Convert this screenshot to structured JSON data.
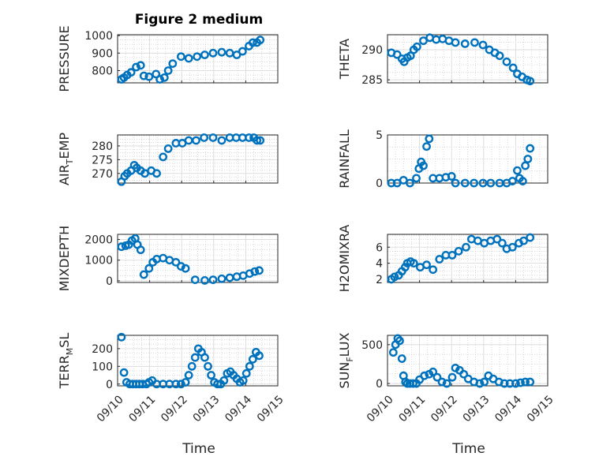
{
  "figure": {
    "title": "Figure 2 medium",
    "marker_color": "#0072bd",
    "grid": "on, major and minor dotted",
    "x_tick_labels": [
      "09/10",
      "09/11",
      "09/12",
      "09/13",
      "09/14",
      "09/15"
    ],
    "x_label": "Time"
  },
  "chart_data": [
    {
      "type": "scatter",
      "name": "PRESSURE",
      "ylabel": "PRESSURE",
      "ylim": [
        730,
        1005
      ],
      "yticks": [
        800,
        900,
        1000
      ],
      "xlim_days": [
        0,
        5
      ],
      "x_days": [
        0.12,
        0.2,
        0.3,
        0.42,
        0.58,
        0.72,
        0.82,
        0.98,
        1.2,
        1.32,
        1.46,
        1.58,
        1.72,
        1.98,
        2.22,
        2.48,
        2.72,
        2.98,
        3.25,
        3.5,
        3.72,
        3.9,
        4.1,
        4.22,
        4.35,
        4.45
      ],
      "values": [
        750,
        760,
        775,
        790,
        820,
        830,
        770,
        765,
        780,
        750,
        760,
        800,
        840,
        880,
        870,
        880,
        890,
        900,
        905,
        900,
        890,
        910,
        940,
        960,
        960,
        975
      ]
    },
    {
      "type": "scatter",
      "name": "THETA",
      "ylabel": "THETA",
      "ylim": [
        284.5,
        292.5
      ],
      "yticks": [
        285,
        290
      ],
      "xlim_days": [
        0,
        5
      ],
      "x_days": [
        0.12,
        0.3,
        0.45,
        0.52,
        0.62,
        0.72,
        0.82,
        0.92,
        1.12,
        1.32,
        1.52,
        1.72,
        1.92,
        2.12,
        2.42,
        2.72,
        2.98,
        3.18,
        3.35,
        3.5,
        3.72,
        3.92,
        4.05,
        4.2,
        4.35,
        4.45
      ],
      "values": [
        289.5,
        289.2,
        288.5,
        288.0,
        288.7,
        289.0,
        290.0,
        290.5,
        291.5,
        292.0,
        291.7,
        291.8,
        291.5,
        291.2,
        291.0,
        291.2,
        290.8,
        290.0,
        289.5,
        289.0,
        288.0,
        287.0,
        286.0,
        285.5,
        285.0,
        284.8
      ]
    },
    {
      "type": "scatter",
      "name": "AIR_TEMP",
      "ylabel": "AIR_TEMP",
      "ylim": [
        266.5,
        284
      ],
      "yticks": [
        270,
        275,
        280
      ],
      "xlim_days": [
        0,
        5
      ],
      "x_days": [
        0.12,
        0.22,
        0.3,
        0.42,
        0.52,
        0.6,
        0.72,
        0.85,
        1.05,
        1.22,
        1.42,
        1.58,
        1.82,
        2.02,
        2.22,
        2.45,
        2.7,
        2.98,
        3.25,
        3.5,
        3.7,
        3.9,
        4.1,
        4.25,
        4.35,
        4.45
      ],
      "values": [
        267,
        269,
        270,
        271,
        273,
        272,
        271,
        270,
        271,
        270,
        276,
        279,
        281,
        281,
        282,
        282,
        283,
        283,
        282,
        283,
        283,
        283,
        283,
        283,
        282,
        282
      ]
    },
    {
      "type": "scatter",
      "name": "RAINFALL",
      "ylabel": "RAINFALL",
      "ylim": [
        0,
        5
      ],
      "yticks": [
        0,
        5
      ],
      "xlim_days": [
        0,
        5
      ],
      "x_days": [
        0.12,
        0.3,
        0.5,
        0.7,
        0.9,
        0.98,
        1.05,
        1.12,
        1.22,
        1.3,
        1.42,
        1.62,
        1.82,
        2.0,
        2.12,
        2.42,
        2.7,
        2.98,
        3.22,
        3.5,
        3.72,
        3.9,
        4.05,
        4.12,
        4.22,
        4.3,
        4.38,
        4.45
      ],
      "values": [
        0,
        0,
        0.3,
        0,
        0.5,
        1.5,
        2.2,
        1.8,
        3.8,
        4.6,
        0.5,
        0.5,
        0.6,
        0.7,
        0,
        0,
        0,
        0,
        0,
        0,
        0,
        0.2,
        1.3,
        0.5,
        0.2,
        1.8,
        2.5,
        3.6
      ]
    },
    {
      "type": "scatter",
      "name": "MIXDEPTH",
      "ylabel": "MIXDEPTH",
      "ylim": [
        -80,
        2250
      ],
      "yticks": [
        0,
        1000,
        2000
      ],
      "xlim_days": [
        0,
        5
      ],
      "x_days": [
        0.12,
        0.25,
        0.35,
        0.45,
        0.55,
        0.62,
        0.72,
        0.82,
        0.98,
        1.1,
        1.22,
        1.42,
        1.62,
        1.82,
        1.98,
        2.12,
        2.42,
        2.72,
        2.98,
        3.25,
        3.5,
        3.72,
        3.92,
        4.12,
        4.28,
        4.42
      ],
      "values": [
        1650,
        1700,
        1750,
        1950,
        2050,
        1750,
        1500,
        300,
        600,
        900,
        1050,
        1100,
        1000,
        900,
        700,
        600,
        50,
        20,
        50,
        100,
        150,
        200,
        250,
        350,
        450,
        500
      ]
    },
    {
      "type": "scatter",
      "name": "H2OMIXRA",
      "ylabel": "H2OMIXRA",
      "ylim": [
        1.6,
        7.6
      ],
      "yticks": [
        2,
        4,
        6
      ],
      "xlim_days": [
        0,
        5
      ],
      "x_days": [
        0.12,
        0.22,
        0.35,
        0.45,
        0.55,
        0.62,
        0.72,
        0.82,
        1.02,
        1.22,
        1.42,
        1.62,
        1.82,
        2.02,
        2.22,
        2.45,
        2.62,
        2.82,
        3.02,
        3.22,
        3.42,
        3.58,
        3.72,
        3.9,
        4.1,
        4.25,
        4.45
      ],
      "values": [
        2,
        2.3,
        2.5,
        3.0,
        3.5,
        4.0,
        4.2,
        4.0,
        3.5,
        3.8,
        3.2,
        4.5,
        5.0,
        5.0,
        5.5,
        6.0,
        7.0,
        6.8,
        6.5,
        6.8,
        7.0,
        6.5,
        5.8,
        6.0,
        6.5,
        6.8,
        7.2
      ]
    },
    {
      "type": "scatter",
      "name": "TERR_MSL",
      "ylabel": "TERR_MSL",
      "ylim": [
        -10,
        275
      ],
      "yticks": [
        0,
        100,
        200
      ],
      "xlim_days": [
        0,
        5
      ],
      "x_days": [
        0.12,
        0.2,
        0.28,
        0.38,
        0.48,
        0.58,
        0.68,
        0.78,
        0.9,
        0.98,
        1.08,
        1.22,
        1.42,
        1.62,
        1.82,
        1.98,
        2.12,
        2.22,
        2.32,
        2.42,
        2.52,
        2.62,
        2.72,
        2.82,
        2.92,
        3.02,
        3.12,
        3.22,
        3.32,
        3.42,
        3.52,
        3.62,
        3.72,
        3.82,
        3.92,
        4.02,
        4.12,
        4.22,
        4.32,
        4.42
      ],
      "values": [
        265,
        65,
        10,
        0,
        0,
        0,
        0,
        0,
        0,
        10,
        20,
        0,
        0,
        0,
        0,
        0,
        10,
        50,
        100,
        150,
        200,
        180,
        150,
        100,
        50,
        10,
        0,
        0,
        20,
        60,
        70,
        50,
        30,
        10,
        20,
        60,
        100,
        140,
        180,
        160
      ]
    },
    {
      "type": "scatter",
      "name": "SUN_FLUX",
      "ylabel": "SUN_FLUX",
      "ylim": [
        -30,
        620
      ],
      "yticks": [
        0,
        500
      ],
      "xlim_days": [
        0,
        5
      ],
      "x_days": [
        0.18,
        0.25,
        0.32,
        0.38,
        0.45,
        0.5,
        0.56,
        0.62,
        0.7,
        0.8,
        0.9,
        1.0,
        1.15,
        1.3,
        1.42,
        1.55,
        1.7,
        1.85,
        2.02,
        2.12,
        2.25,
        2.38,
        2.52,
        2.7,
        2.88,
        3.02,
        3.15,
        3.3,
        3.48,
        3.65,
        3.82,
        4.0,
        4.15,
        4.3,
        4.45
      ],
      "values": [
        400,
        500,
        580,
        550,
        320,
        100,
        20,
        0,
        0,
        0,
        0,
        50,
        100,
        120,
        150,
        80,
        20,
        0,
        80,
        200,
        170,
        120,
        60,
        20,
        0,
        20,
        100,
        60,
        20,
        0,
        0,
        0,
        10,
        20,
        20
      ]
    }
  ]
}
